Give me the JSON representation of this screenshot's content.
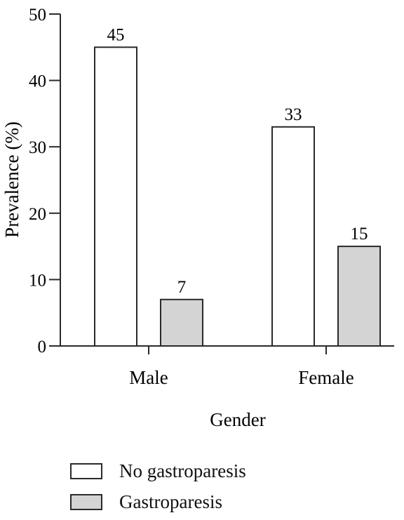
{
  "chart_data": {
    "type": "bar",
    "categories": [
      "Male",
      "Female"
    ],
    "series": [
      {
        "name": "No gastroparesis",
        "values": [
          45,
          33
        ],
        "color": "#ffffff"
      },
      {
        "name": "Gastroparesis",
        "values": [
          7,
          15
        ],
        "color": "#d4d4d4"
      }
    ],
    "xlabel": "Gender",
    "ylabel": "Prevalence (%)",
    "ylim": [
      0,
      50
    ],
    "yticks": [
      0,
      10,
      20,
      30,
      40,
      50
    ],
    "data_labels": true,
    "grid": false,
    "legend_position": "bottom"
  }
}
